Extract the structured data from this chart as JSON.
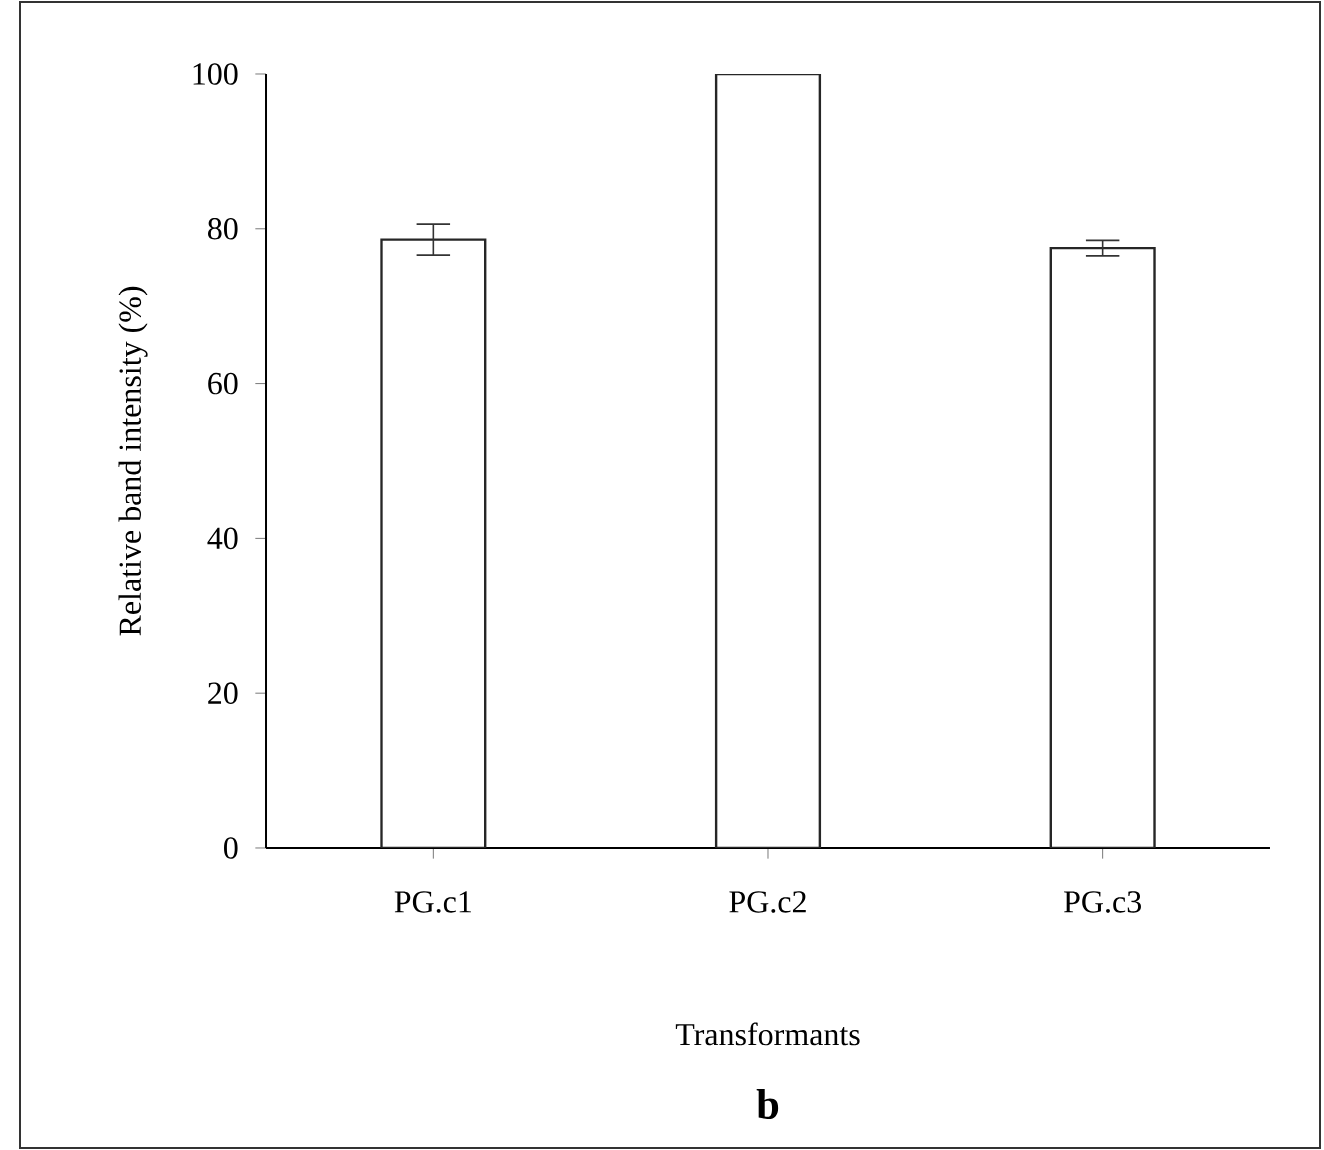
{
  "chart_data": {
    "type": "bar",
    "ylabel": "Relative band intensity (%)",
    "xlabel": "Transformants",
    "annotations": [
      "b"
    ],
    "categories": [
      "PG.c1",
      "PG.c2",
      "PG.c3"
    ],
    "values": [
      78.6,
      100,
      77.5
    ],
    "errors": [
      2,
      null,
      1
    ],
    "color": "#ffffff",
    "ylim": [
      0,
      100
    ],
    "yticks": [
      0,
      20,
      40,
      60,
      80,
      100
    ]
  }
}
